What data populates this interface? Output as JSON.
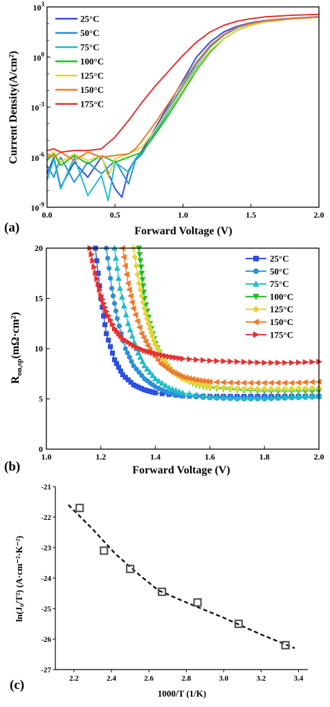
{
  "chart_data": [
    {
      "panel_label": "(a)",
      "type": "line",
      "xlabel": "Forward Voltage (V)",
      "ylabel": "Current Density(A/cm²)",
      "xlim": [
        0.0,
        2.0
      ],
      "ylim_log10": [
        -9,
        3
      ],
      "yscale": "log",
      "xticks": [
        "0.0",
        "0.5",
        "1.0",
        "1.5",
        "2.0"
      ],
      "yticks": [
        {
          "base": "10",
          "exp": "3"
        },
        {
          "base": "10",
          "exp": "0"
        },
        {
          "base": "10",
          "exp": "-3"
        },
        {
          "base": "10",
          "exp": "-6"
        },
        {
          "base": "10",
          "exp": "-9"
        }
      ],
      "legend_position": "top-left",
      "series": [
        {
          "name": "25°C",
          "color": "#2b4fe0",
          "x": [
            0.0,
            0.05,
            0.1,
            0.2,
            0.3,
            0.4,
            0.5,
            0.55,
            0.6,
            0.65,
            0.7,
            0.8,
            0.9,
            1.0,
            1.1,
            1.2,
            1.3,
            1.4,
            1.5,
            1.6,
            1.8,
            2.0
          ],
          "log10_y": [
            -7.0,
            -6.0,
            -7.8,
            -6.3,
            -7.2,
            -6.0,
            -7.9,
            -8.4,
            -6.8,
            -6.1,
            -5.6,
            -4.2,
            -2.8,
            -1.4,
            0.0,
            0.9,
            1.5,
            1.85,
            2.05,
            2.18,
            2.32,
            2.42
          ]
        },
        {
          "name": "50°C",
          "color": "#2a8fd8",
          "x": [
            0.0,
            0.05,
            0.1,
            0.2,
            0.3,
            0.4,
            0.5,
            0.6,
            0.65,
            0.7,
            0.8,
            0.9,
            1.0,
            1.1,
            1.2,
            1.3,
            1.4,
            1.5,
            1.6,
            1.8,
            2.0
          ],
          "log10_y": [
            -6.5,
            -7.2,
            -6.0,
            -7.5,
            -6.3,
            -7.0,
            -6.2,
            -7.6,
            -6.2,
            -5.8,
            -4.4,
            -3.0,
            -1.7,
            -0.4,
            0.6,
            1.3,
            1.75,
            2.0,
            2.15,
            2.3,
            2.4
          ]
        },
        {
          "name": "75°C",
          "color": "#1fbcc8",
          "x": [
            0.0,
            0.05,
            0.1,
            0.2,
            0.3,
            0.4,
            0.45,
            0.5,
            0.6,
            0.65,
            0.7,
            0.8,
            0.9,
            1.0,
            1.1,
            1.2,
            1.3,
            1.4,
            1.5,
            1.6,
            1.8,
            2.0
          ],
          "log10_y": [
            -7.4,
            -6.1,
            -7.9,
            -6.0,
            -8.3,
            -7.1,
            -8.6,
            -6.3,
            -6.9,
            -6.1,
            -5.7,
            -4.5,
            -3.2,
            -1.9,
            -0.6,
            0.4,
            1.1,
            1.6,
            1.9,
            2.1,
            2.28,
            2.38
          ]
        },
        {
          "name": "100°C",
          "color": "#1ec01e",
          "x": [
            0.0,
            0.05,
            0.1,
            0.2,
            0.3,
            0.4,
            0.5,
            0.6,
            0.7,
            0.8,
            0.9,
            1.0,
            1.1,
            1.2,
            1.3,
            1.4,
            1.5,
            1.6,
            1.8,
            2.0
          ],
          "log10_y": [
            -6.2,
            -5.8,
            -6.5,
            -5.9,
            -6.4,
            -5.9,
            -6.3,
            -6.0,
            -5.7,
            -4.6,
            -3.4,
            -2.1,
            -0.8,
            0.3,
            1.1,
            1.6,
            1.9,
            2.1,
            2.28,
            2.38
          ]
        },
        {
          "name": "125°C",
          "color": "#e3d43a",
          "x": [
            0.0,
            0.05,
            0.1,
            0.2,
            0.3,
            0.4,
            0.45,
            0.5,
            0.6,
            0.7,
            0.8,
            0.9,
            1.0,
            1.1,
            1.2,
            1.3,
            1.4,
            1.5,
            1.6,
            1.8,
            2.0
          ],
          "log10_y": [
            -6.0,
            -5.7,
            -6.3,
            -5.8,
            -6.2,
            -5.9,
            -7.2,
            -6.1,
            -5.8,
            -5.4,
            -4.3,
            -3.1,
            -1.9,
            -0.7,
            0.4,
            1.1,
            1.6,
            1.9,
            2.1,
            2.28,
            2.38
          ]
        },
        {
          "name": "150°C",
          "color": "#ee7a2a",
          "x": [
            0.0,
            0.05,
            0.1,
            0.2,
            0.3,
            0.4,
            0.5,
            0.6,
            0.65,
            0.7,
            0.8,
            0.9,
            1.0,
            1.1,
            1.2,
            1.3,
            1.4,
            1.5,
            1.6,
            1.8,
            2.0
          ],
          "log10_y": [
            -5.8,
            -6.0,
            -5.7,
            -6.2,
            -5.7,
            -6.0,
            -5.9,
            -5.8,
            -5.5,
            -5.0,
            -3.9,
            -2.7,
            -1.5,
            -0.3,
            0.7,
            1.35,
            1.8,
            2.0,
            2.15,
            2.3,
            2.4
          ]
        },
        {
          "name": "175°C",
          "color": "#e53030",
          "x": [
            0.0,
            0.05,
            0.1,
            0.2,
            0.3,
            0.4,
            0.5,
            0.6,
            0.7,
            0.8,
            0.9,
            1.0,
            1.1,
            1.2,
            1.3,
            1.4,
            1.5,
            1.6,
            1.8,
            2.0
          ],
          "log10_y": [
            -5.6,
            -5.5,
            -5.7,
            -5.6,
            -5.6,
            -5.5,
            -4.8,
            -3.8,
            -2.7,
            -1.7,
            -0.8,
            0.1,
            0.9,
            1.5,
            1.9,
            2.15,
            2.3,
            2.4,
            2.5,
            2.55
          ]
        }
      ]
    },
    {
      "panel_label": "(b)",
      "type": "line",
      "xlabel": "Forward Voltage (V)",
      "ylabel_main": "R",
      "ylabel_sub": "on,sp",
      "ylabel_unit": "(mΩ·cm²)",
      "xlim": [
        1.0,
        2.0
      ],
      "ylim": [
        0,
        20
      ],
      "xticks": [
        "1.0",
        "1.2",
        "1.4",
        "1.6",
        "1.8",
        "2.0"
      ],
      "yticks": [
        "0",
        "5",
        "10",
        "15",
        "20"
      ],
      "legend_position": "top-right",
      "series": [
        {
          "name": "25°C",
          "color": "#2b4fe0",
          "marker": "square",
          "x": [
            1.18,
            1.2,
            1.22,
            1.25,
            1.28,
            1.32,
            1.36,
            1.4,
            1.5,
            1.6,
            1.7,
            1.8,
            1.9,
            2.0
          ],
          "values": [
            20.0,
            15.0,
            11.5,
            8.9,
            7.4,
            6.4,
            5.9,
            5.6,
            5.3,
            5.25,
            5.25,
            5.25,
            5.25,
            5.25
          ]
        },
        {
          "name": "50°C",
          "color": "#2a8fd8",
          "marker": "circle",
          "x": [
            1.22,
            1.24,
            1.26,
            1.29,
            1.32,
            1.36,
            1.4,
            1.45,
            1.5,
            1.6,
            1.7,
            1.8,
            1.9,
            2.0
          ],
          "values": [
            20.0,
            16.0,
            13.0,
            10.0,
            8.3,
            7.0,
            6.2,
            5.6,
            5.3,
            5.1,
            5.0,
            5.0,
            5.1,
            5.2
          ]
        },
        {
          "name": "75°C",
          "color": "#1fbcc8",
          "marker": "triangle-up",
          "x": [
            1.25,
            1.27,
            1.3,
            1.33,
            1.36,
            1.4,
            1.45,
            1.5,
            1.6,
            1.7,
            1.8,
            1.9,
            2.0
          ],
          "values": [
            20.0,
            16.0,
            12.5,
            10.0,
            8.3,
            7.0,
            6.1,
            5.6,
            5.2,
            5.1,
            5.1,
            5.2,
            5.3
          ]
        },
        {
          "name": "100°C",
          "color": "#1ec01e",
          "marker": "triangle-down",
          "x": [
            1.34,
            1.35,
            1.36,
            1.38,
            1.4,
            1.43,
            1.46,
            1.5,
            1.55,
            1.6,
            1.7,
            1.8,
            1.9,
            2.0
          ],
          "values": [
            20.0,
            17.5,
            15.0,
            12.5,
            10.5,
            8.8,
            7.7,
            7.0,
            6.4,
            6.1,
            5.9,
            5.8,
            5.8,
            5.8
          ]
        },
        {
          "name": "125°C",
          "color": "#e3d43a",
          "marker": "diamond",
          "x": [
            1.32,
            1.34,
            1.36,
            1.38,
            1.4,
            1.43,
            1.46,
            1.5,
            1.55,
            1.6,
            1.7,
            1.8,
            1.9,
            2.0
          ],
          "values": [
            20.0,
            16.5,
            14.0,
            12.0,
            10.4,
            8.9,
            7.8,
            7.0,
            6.5,
            6.2,
            6.0,
            6.0,
            6.0,
            6.1
          ]
        },
        {
          "name": "150°C",
          "color": "#ee7a2a",
          "marker": "triangle-left",
          "x": [
            1.28,
            1.3,
            1.32,
            1.35,
            1.38,
            1.42,
            1.46,
            1.5,
            1.55,
            1.6,
            1.7,
            1.8,
            1.9,
            2.0
          ],
          "values": [
            20.0,
            16.5,
            14.0,
            11.5,
            9.9,
            8.5,
            7.7,
            7.2,
            6.9,
            6.7,
            6.6,
            6.6,
            6.6,
            6.7
          ]
        },
        {
          "name": "175°C",
          "color": "#e53030",
          "marker": "triangle-right",
          "x": [
            1.16,
            1.18,
            1.2,
            1.22,
            1.25,
            1.28,
            1.32,
            1.36,
            1.4,
            1.45,
            1.5,
            1.6,
            1.7,
            1.8,
            1.9,
            2.0
          ],
          "values": [
            20.0,
            17.5,
            15.3,
            13.7,
            12.0,
            11.0,
            10.3,
            9.8,
            9.5,
            9.2,
            9.0,
            8.8,
            8.7,
            8.6,
            8.6,
            8.7
          ]
        }
      ]
    },
    {
      "panel_label": "(c)",
      "type": "scatter",
      "xlabel": "1000/T  (1/K)",
      "ylabel": "ln(J₀/T²) (A·cm⁻²·K⁻²)",
      "xlim": [
        2.1,
        3.45
      ],
      "ylim": [
        -27,
        -21
      ],
      "xticks": [
        "2.2",
        "2.4",
        "2.6",
        "2.8",
        "3.0",
        "3.2",
        "3.4"
      ],
      "yticks": [
        "-21",
        "-22",
        "-23",
        "-24",
        "-25",
        "-26",
        "-27"
      ],
      "series": [
        {
          "marker": "open-square",
          "color": "#555555",
          "x": [
            2.23,
            2.36,
            2.5,
            2.67,
            2.86,
            3.08,
            3.33
          ],
          "values": [
            -21.7,
            -23.1,
            -23.7,
            -24.45,
            -24.8,
            -25.5,
            -26.2
          ]
        }
      ],
      "fit_line": {
        "style": "dashed",
        "color": "#111111",
        "x": [
          2.17,
          2.3,
          2.42,
          2.55,
          2.65,
          2.8,
          3.0,
          3.2,
          3.38
        ],
        "values": [
          -21.6,
          -22.4,
          -23.2,
          -23.9,
          -24.4,
          -24.8,
          -25.3,
          -25.85,
          -26.3
        ]
      }
    }
  ]
}
